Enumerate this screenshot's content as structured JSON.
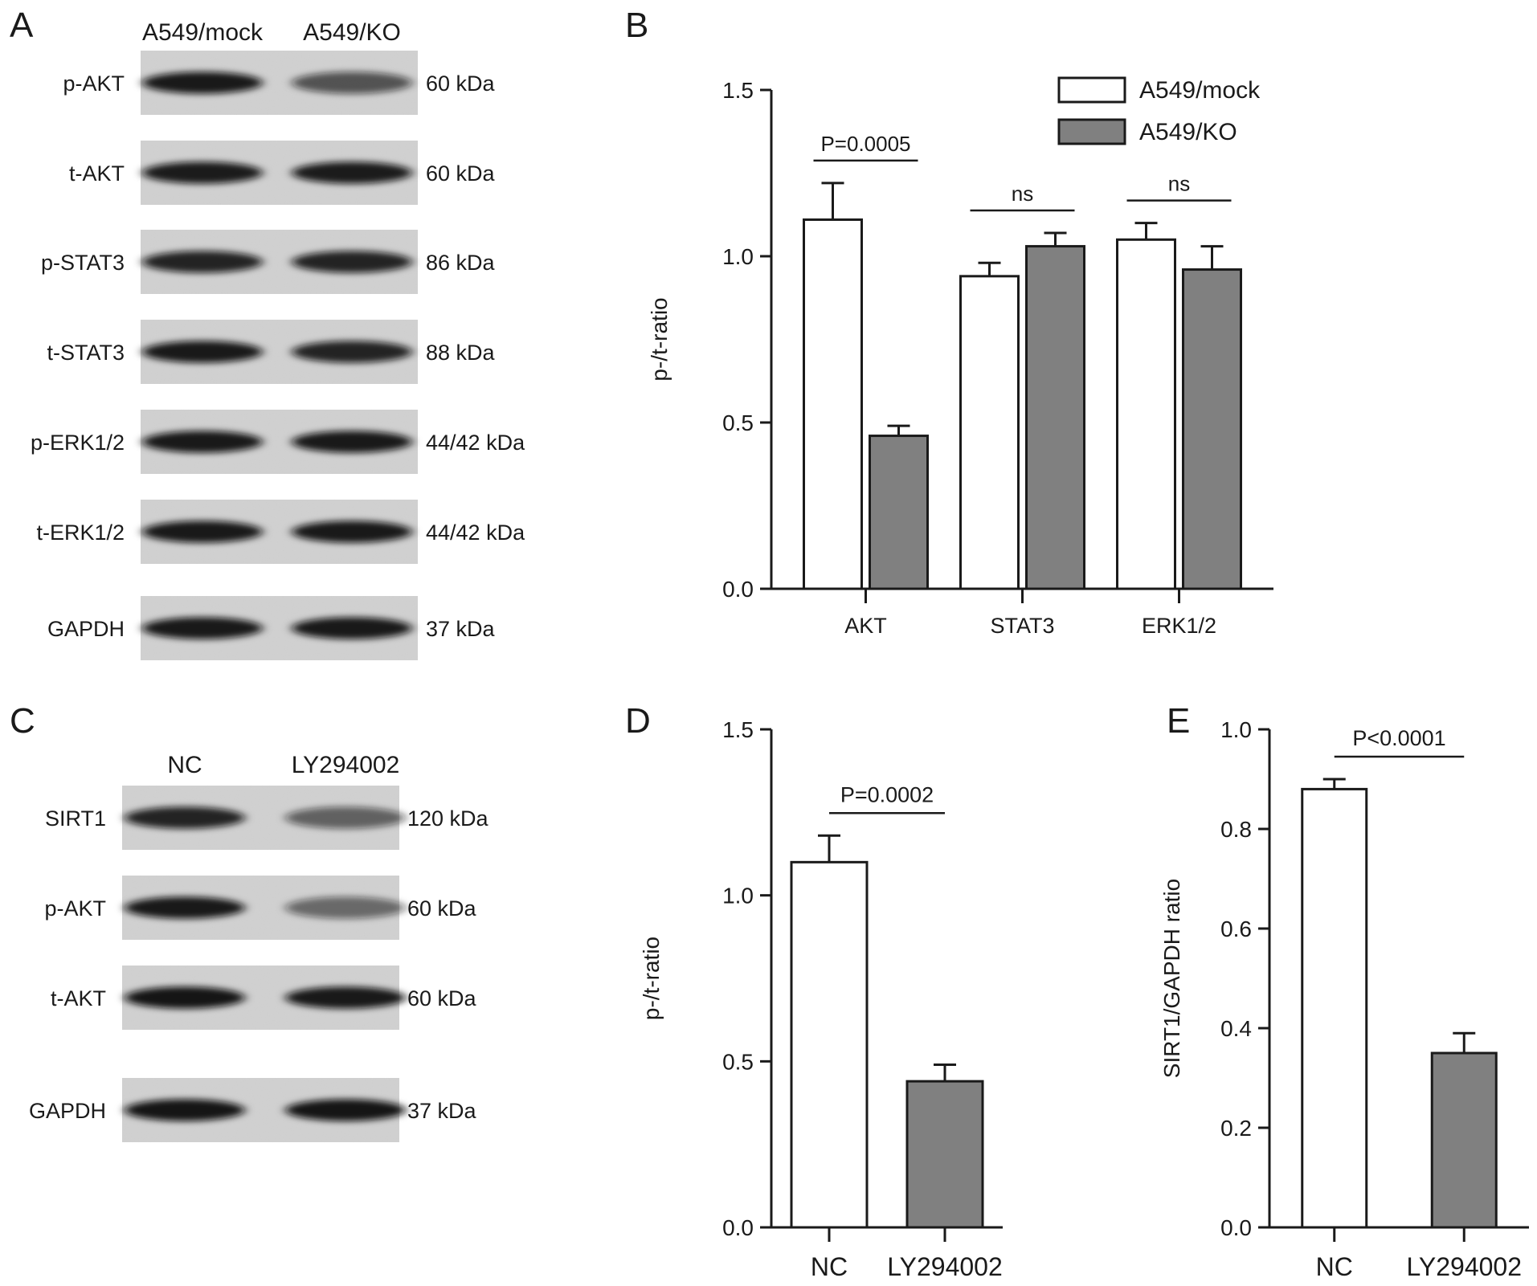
{
  "panels": {
    "A": {
      "letter": "A",
      "lanes": [
        "A549/mock",
        "A549/KO"
      ],
      "blots": [
        {
          "label": "p-AKT",
          "kda": "60 kDa",
          "intensity": [
            0.92,
            0.55
          ]
        },
        {
          "label": "t-AKT",
          "kda": "60 kDa",
          "intensity": [
            0.9,
            0.9
          ]
        },
        {
          "label": "p-STAT3",
          "kda": "86 kDa",
          "intensity": [
            0.85,
            0.85
          ]
        },
        {
          "label": "t-STAT3",
          "kda": "88 kDa",
          "intensity": [
            0.92,
            0.85
          ]
        },
        {
          "label": "p-ERK1/2",
          "kda": "44/42 kDa",
          "intensity": [
            0.92,
            0.92
          ]
        },
        {
          "label": "t-ERK1/2",
          "kda": "44/42 kDa",
          "intensity": [
            0.92,
            0.92
          ]
        },
        {
          "label": "GAPDH",
          "kda": "37 kDa",
          "intensity": [
            0.92,
            0.92
          ]
        }
      ]
    },
    "C": {
      "letter": "C",
      "lanes": [
        "NC",
        "LY294002"
      ],
      "blots": [
        {
          "label": "SIRT1",
          "kda": "120 kDa",
          "intensity": [
            0.85,
            0.45
          ]
        },
        {
          "label": "p-AKT",
          "kda": "60 kDa",
          "intensity": [
            0.92,
            0.4
          ]
        },
        {
          "label": "t-AKT",
          "kda": "60 kDa",
          "intensity": [
            0.95,
            0.92
          ]
        },
        {
          "label": "GAPDH",
          "kda": "37 kDa",
          "intensity": [
            0.95,
            0.95
          ]
        }
      ]
    },
    "B": {
      "letter": "B"
    },
    "D": {
      "letter": "D"
    },
    "E": {
      "letter": "E"
    }
  },
  "chart_data": [
    {
      "panel": "B",
      "type": "bar",
      "categories": [
        "AKT",
        "STAT3",
        "ERK1/2"
      ],
      "series": [
        {
          "name": "A549/mock",
          "values": [
            1.11,
            0.94,
            1.05
          ],
          "errors": [
            0.11,
            0.04,
            0.05
          ],
          "color": "#ffffff"
        },
        {
          "name": "A549/KO",
          "values": [
            0.46,
            1.03,
            0.96
          ],
          "errors": [
            0.03,
            0.04,
            0.07
          ],
          "color": "#808080"
        }
      ],
      "ylabel": "p-/t-ratio",
      "ylim": [
        0,
        1.5
      ],
      "yticks": [
        "0.0",
        "0.5",
        "1.0",
        "1.5"
      ],
      "legend": "top-right",
      "annotations": [
        {
          "text": "P=0.0005",
          "category": "AKT"
        },
        {
          "text": "ns",
          "category": "STAT3"
        },
        {
          "text": "ns",
          "category": "ERK1/2"
        }
      ]
    },
    {
      "panel": "D",
      "type": "bar",
      "categories": [
        "NC",
        "LY294002"
      ],
      "values": [
        1.1,
        0.44
      ],
      "errors": [
        0.08,
        0.05
      ],
      "colors": [
        "#ffffff",
        "#808080"
      ],
      "ylabel": "p-/t-ratio",
      "ylim": [
        0,
        1.5
      ],
      "yticks": [
        "0.0",
        "0.5",
        "1.0",
        "1.5"
      ],
      "annotations": [
        {
          "text": "P=0.0002"
        }
      ]
    },
    {
      "panel": "E",
      "type": "bar",
      "categories": [
        "NC",
        "LY294002"
      ],
      "values": [
        0.88,
        0.35
      ],
      "errors": [
        0.02,
        0.04
      ],
      "colors": [
        "#ffffff",
        "#808080"
      ],
      "ylabel": "SIRT1/GAPDH ratio",
      "ylim": [
        0,
        1.0
      ],
      "yticks": [
        "0.0",
        "0.2",
        "0.4",
        "0.6",
        "0.8",
        "1.0"
      ],
      "annotations": [
        {
          "text": "P<0.0001"
        }
      ]
    }
  ]
}
